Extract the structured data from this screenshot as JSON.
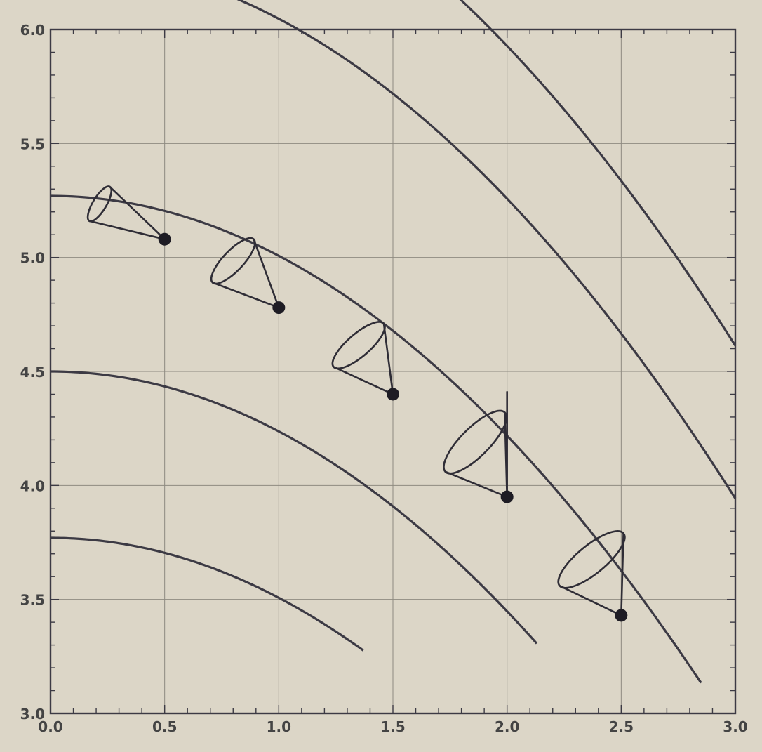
{
  "chart_data": {
    "type": "line",
    "title": "",
    "xlabel": "",
    "ylabel": "",
    "xlim": [
      0.0,
      3.0
    ],
    "ylim": [
      3.0,
      6.0
    ],
    "grid": true,
    "x_ticks": [
      "0.0",
      "0.5",
      "1.0",
      "1.5",
      "2.0",
      "2.5",
      "3.0"
    ],
    "y_ticks": [
      "6.0",
      "5.5",
      "5.0",
      "4.5",
      "4.0",
      "3.5",
      "3.0"
    ],
    "series": [
      {
        "a": 6.31,
        "b": 0.263,
        "from": 0.3,
        "to": 3.0
      },
      {
        "a": 6.98,
        "b": 0.263,
        "from": 1.55,
        "to": 3.0
      },
      {
        "a": 5.27,
        "b": 0.263,
        "from": 0.0,
        "to": 2.85
      },
      {
        "a": 4.5,
        "b": 0.263,
        "from": 0.0,
        "to": 2.13
      },
      {
        "a": 3.77,
        "b": 0.263,
        "from": 0.0,
        "to": 1.37
      }
    ],
    "marked_points": [
      {
        "x": 0.5,
        "y": 5.08
      },
      {
        "x": 1.0,
        "y": 4.78
      },
      {
        "x": 1.5,
        "y": 4.4
      },
      {
        "x": 2.0,
        "y": 3.95
      },
      {
        "x": 2.5,
        "y": 3.43
      }
    ],
    "cones": [
      {
        "tip": [
          0.5,
          5.08
        ],
        "rim_a": [
          0.26,
          5.31
        ],
        "rim_b": [
          0.17,
          5.16
        ],
        "handle": null
      },
      {
        "tip": [
          1.0,
          4.78
        ],
        "rim_a": [
          0.89,
          5.08
        ],
        "rim_b": [
          0.71,
          4.89
        ],
        "handle": null
      },
      {
        "tip": [
          1.5,
          4.4
        ],
        "rim_a": [
          1.46,
          4.71
        ],
        "rim_b": [
          1.24,
          4.52
        ],
        "handle": null
      },
      {
        "tip": [
          2.0,
          3.95
        ],
        "rim_a": [
          1.99,
          4.32
        ],
        "rim_b": [
          1.73,
          4.06
        ],
        "handle": [
          2.0,
          4.41
        ]
      },
      {
        "tip": [
          2.5,
          3.43
        ],
        "rim_a": [
          2.51,
          3.79
        ],
        "rim_b": [
          2.23,
          3.56
        ],
        "handle": null
      }
    ],
    "colors": {
      "background": "#dcd6c7",
      "curve": "#3c3a44",
      "grid": "#8e8a80",
      "text": "#444444"
    }
  }
}
